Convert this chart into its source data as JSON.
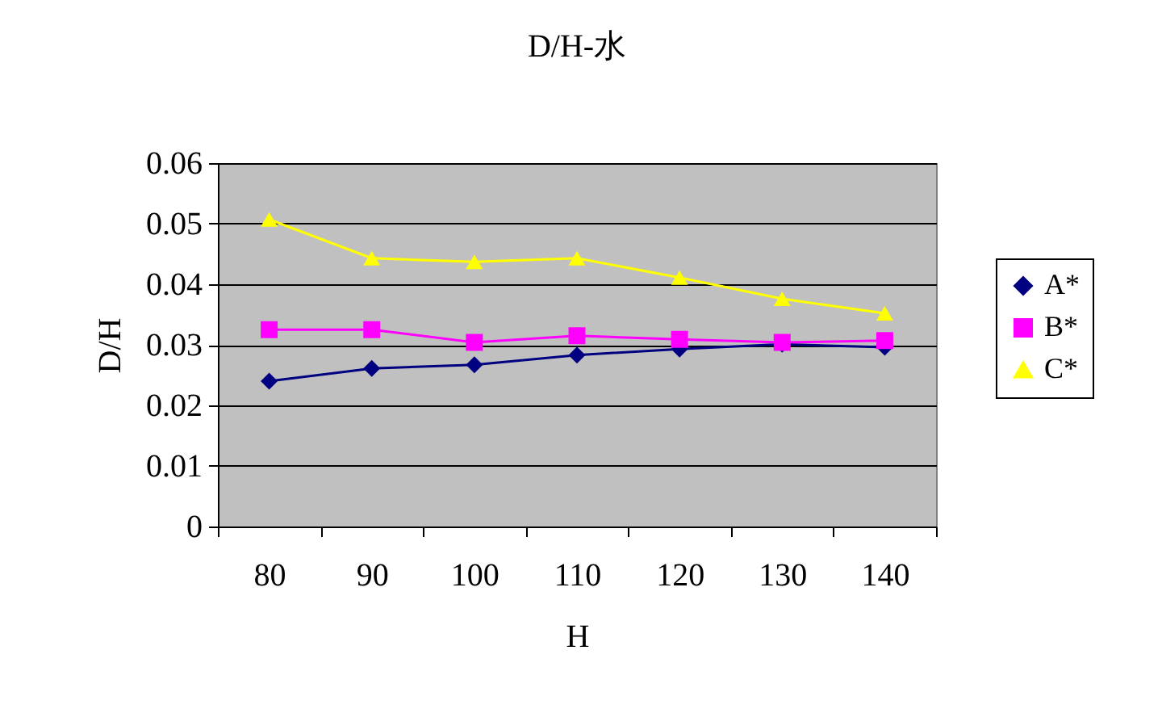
{
  "chart_data": {
    "type": "line",
    "title": "D/H-水",
    "xlabel": "H",
    "ylabel": "D/H",
    "categories": [
      "80",
      "90",
      "100",
      "110",
      "120",
      "130",
      "140"
    ],
    "series": [
      {
        "name": "A*",
        "color": "#000080",
        "marker": "diamond",
        "values": [
          0.024,
          0.0261,
          0.0267,
          0.0283,
          0.0293,
          0.0301,
          0.0296
        ]
      },
      {
        "name": "B*",
        "color": "#ff00ff",
        "marker": "square",
        "values": [
          0.0325,
          0.0325,
          0.0304,
          0.0315,
          0.0309,
          0.0304,
          0.0307
        ]
      },
      {
        "name": "C*",
        "color": "#ffff00",
        "marker": "triangle",
        "values": [
          0.0507,
          0.0443,
          0.0437,
          0.0443,
          0.0411,
          0.0376,
          0.0352
        ]
      }
    ],
    "ylim": [
      0,
      0.06
    ],
    "yticks": [
      0,
      0.01,
      0.02,
      0.03,
      0.04,
      0.05,
      0.06
    ],
    "grid": "y",
    "legend": "right",
    "line_style": "solid"
  }
}
